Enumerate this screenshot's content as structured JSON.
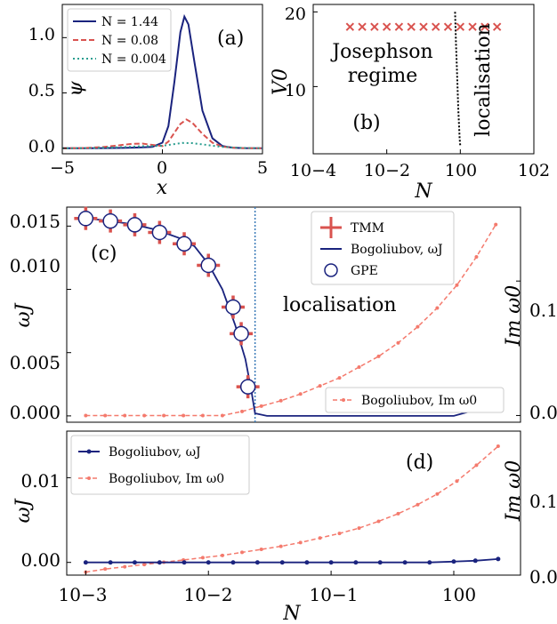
{
  "colors": {
    "navy": "#1a237e",
    "red_dashed": "#d9534f",
    "teal_dotted": "#2a9d8f",
    "salmon": "#f47a6d",
    "tmm_red": "#d9534f",
    "vline": "#3a7ab8"
  },
  "panels": {
    "a": {
      "tag": "(a)",
      "xlabel": "x",
      "ylabel": "ψ",
      "xticks": [
        "−5",
        "0",
        "5"
      ],
      "yticks": [
        "0.0",
        "0.5",
        "1.0"
      ],
      "legend": [
        "N = 1.44",
        "N = 0.08",
        "N = 0.004"
      ]
    },
    "b": {
      "tag": "(b)",
      "xlabel": "N",
      "ylabel": "V0",
      "xticks": [
        "10−4",
        "10−2",
        "100",
        "102"
      ],
      "yticks": [
        "10",
        "20"
      ],
      "label_josephson_1": "Josephson",
      "label_josephson_2": "regime",
      "label_localisation": "localisation"
    },
    "c": {
      "tag": "(c)",
      "ylabel_left": "ωJ",
      "ylabel_right": "Im ω0",
      "yticks_left": [
        "0.000",
        "0.005",
        "0.010",
        "0.015"
      ],
      "yticks_right": [
        "0.0",
        "0.1"
      ],
      "label_localisation": "localisation",
      "legend": [
        "TMM",
        "Bogoliubov, ωJ",
        "GPE"
      ],
      "legend2": "Bogoliubov, Im ω0"
    },
    "d": {
      "tag": "(d)",
      "xlabel": "N",
      "ylabel_left": "ωJ",
      "ylabel_right": "Im ω0",
      "yticks_left": [
        "0.00",
        "0.01"
      ],
      "yticks_right": [
        "0.0",
        "0.1"
      ],
      "xticks": [
        "10−3",
        "10−2",
        "10−1",
        "100"
      ],
      "legend": [
        "Bogoliubov, ωJ",
        "Bogoliubov, Im ω0"
      ]
    }
  },
  "chart_data": [
    {
      "panel": "a",
      "type": "line",
      "xlabel": "x",
      "ylabel": "ψ",
      "xlim": [
        -5,
        5
      ],
      "ylim": [
        -0.05,
        1.3
      ],
      "grid": false,
      "legend_position": "top-left",
      "series": [
        {
          "name": "N = 1.44",
          "style": "solid",
          "color": "#1a237e",
          "x": [
            -5,
            -4,
            -3,
            -2,
            -1.5,
            -1,
            -0.5,
            0,
            0.3,
            0.6,
            0.9,
            1.1,
            1.3,
            1.6,
            2,
            2.5,
            3,
            3.5,
            4,
            5
          ],
          "y": [
            0,
            0,
            0.001,
            0.003,
            0.005,
            0.008,
            0.012,
            0.05,
            0.2,
            0.6,
            1.05,
            1.19,
            1.12,
            0.78,
            0.34,
            0.09,
            0.02,
            0.005,
            0.001,
            0
          ]
        },
        {
          "name": "N = 0.08",
          "style": "dashed",
          "color": "#d9534f",
          "x": [
            -5,
            -4,
            -3,
            -2,
            -1.5,
            -1,
            -0.5,
            0,
            0.3,
            0.6,
            0.9,
            1.2,
            1.5,
            2,
            2.5,
            3,
            3.5,
            4,
            5
          ],
          "y": [
            0,
            0.002,
            0.01,
            0.03,
            0.04,
            0.042,
            0.03,
            0.02,
            0.06,
            0.14,
            0.22,
            0.26,
            0.23,
            0.13,
            0.05,
            0.015,
            0.005,
            0.001,
            0
          ]
        },
        {
          "name": "N = 0.004",
          "style": "dotted",
          "color": "#2a9d8f",
          "x": [
            -5,
            -4,
            -3,
            -2,
            -1,
            0,
            0.5,
            1,
            1.5,
            2,
            3,
            4,
            5
          ],
          "y": [
            0,
            0.001,
            0.004,
            0.01,
            0.018,
            0.022,
            0.035,
            0.048,
            0.046,
            0.035,
            0.012,
            0.003,
            0
          ]
        }
      ]
    },
    {
      "panel": "b",
      "type": "scatter",
      "xlabel": "N",
      "ylabel": "V0",
      "x_scale": "log",
      "xlim": [
        0.0001,
        100
      ],
      "ylim": [
        1,
        21
      ],
      "grid": false,
      "series": [
        {
          "marker": "x",
          "color": "#d9534f",
          "x": [
            0.001,
            0.00215,
            0.00464,
            0.01,
            0.0215,
            0.0464,
            0.1,
            0.215,
            0.464,
            1,
            2.15,
            4.64,
            10
          ],
          "y": [
            18,
            18,
            18,
            18,
            18,
            18,
            18,
            18,
            18,
            18,
            18,
            18,
            18
          ]
        },
        {
          "style": "dotted",
          "color": "#000000",
          "x": [
            0.72,
            0.74,
            0.76,
            0.8,
            0.84,
            0.88,
            0.92,
            0.96,
            1.0
          ],
          "y": [
            20,
            18,
            16,
            13,
            10,
            7,
            5,
            3,
            2
          ]
        }
      ]
    },
    {
      "panel": "c",
      "type": "line",
      "ylabel_left": "ωJ",
      "ylabel_right": "Im ω0",
      "x_scale": "log",
      "xlim": [
        0.0007,
        3.5
      ],
      "ylim_left": [
        -0.0005,
        0.0165
      ],
      "ylim_right": [
        -0.005,
        0.155
      ],
      "grid": false,
      "vline_x": 0.024,
      "series": [
        {
          "name": "Bogoliubov, ωJ",
          "axis": "left",
          "color": "#1a237e",
          "x": [
            0.001,
            0.0013,
            0.0017,
            0.0022,
            0.0028,
            0.0036,
            0.0046,
            0.006,
            0.0077,
            0.01,
            0.013,
            0.0165,
            0.02,
            0.0222,
            0.024,
            0.03,
            0.1,
            1,
            2,
            2.4
          ],
          "y": [
            0.0156,
            0.0155,
            0.01535,
            0.0152,
            0.015,
            0.01475,
            0.0144,
            0.014,
            0.0134,
            0.012,
            0.01,
            0.0072,
            0.0045,
            0.0022,
            0.0002,
            0,
            0,
            0,
            0.0008,
            0.0012
          ]
        },
        {
          "name": "TMM",
          "axis": "left",
          "color": "#d9534f",
          "marker": "+",
          "x": [
            0.001,
            0.00159,
            0.00251,
            0.004,
            0.00635,
            0.01,
            0.0159,
            0.0185,
            0.021
          ],
          "y": [
            0.0156,
            0.0154,
            0.0151,
            0.0145,
            0.0136,
            0.0119,
            0.0086,
            0.0065,
            0.0023
          ]
        },
        {
          "name": "GPE",
          "axis": "left",
          "marker": "o",
          "x": [
            0.001,
            0.00159,
            0.00251,
            0.004,
            0.00635,
            0.01,
            0.0159,
            0.0185,
            0.021
          ],
          "y": [
            0.0156,
            0.0154,
            0.0151,
            0.0145,
            0.0136,
            0.0119,
            0.0086,
            0.0065,
            0.0023
          ]
        },
        {
          "name": "Bogoliubov, Im ω0",
          "axis": "right",
          "color": "#f47a6d",
          "style": "dashed",
          "x": [
            0.001,
            0.00144,
            0.00208,
            0.003,
            0.00433,
            0.00625,
            0.009,
            0.013,
            0.0188,
            0.027,
            0.039,
            0.0563,
            0.0812,
            0.117,
            0.169,
            0.244,
            0.352,
            0.508,
            0.733,
            1.06,
            1.53,
            2.2
          ],
          "y": [
            0,
            0,
            0,
            0,
            0,
            0,
            0,
            0,
            0.003,
            0.007,
            0.011,
            0.016,
            0.022,
            0.028,
            0.036,
            0.044,
            0.054,
            0.066,
            0.08,
            0.097,
            0.118,
            0.142
          ]
        }
      ]
    },
    {
      "panel": "d",
      "type": "line",
      "xlabel": "N",
      "ylabel_left": "ωJ",
      "ylabel_right": "Im ω0",
      "x_scale": "log",
      "xlim": [
        0.0007,
        3.5
      ],
      "ylim_left": [
        -0.0015,
        0.0155
      ],
      "ylim_right": [
        0,
        0.19
      ],
      "grid": false,
      "legend_position": "top-left",
      "series": [
        {
          "name": "Bogoliubov, ωJ",
          "axis": "left",
          "color": "#1a237e",
          "marker": "dot",
          "x": [
            0.001,
            0.00159,
            0.00251,
            0.004,
            0.00635,
            0.01,
            0.0159,
            0.0251,
            0.04,
            0.0635,
            0.1,
            0.159,
            0.251,
            0.4,
            0.635,
            1,
            1.5,
            2.3
          ],
          "y": [
            0,
            0,
            0,
            0,
            0,
            0,
            0,
            0,
            0,
            0,
            0,
            0,
            0,
            0,
            0,
            0.0001,
            0.0002,
            0.0004
          ]
        },
        {
          "name": "Bogoliubov, Im ω0",
          "axis": "right",
          "color": "#f47a6d",
          "style": "dashed",
          "marker": "dot",
          "x": [
            0.001,
            0.00144,
            0.00208,
            0.003,
            0.00433,
            0.00625,
            0.009,
            0.013,
            0.0188,
            0.027,
            0.039,
            0.0563,
            0.0812,
            0.117,
            0.169,
            0.244,
            0.352,
            0.508,
            0.733,
            1.06,
            1.53,
            2.3
          ],
          "y": [
            0.004,
            0.008,
            0.011,
            0.014,
            0.017,
            0.02,
            0.023,
            0.026,
            0.03,
            0.034,
            0.038,
            0.043,
            0.049,
            0.055,
            0.062,
            0.071,
            0.081,
            0.093,
            0.107,
            0.124,
            0.145,
            0.17
          ]
        }
      ]
    }
  ]
}
